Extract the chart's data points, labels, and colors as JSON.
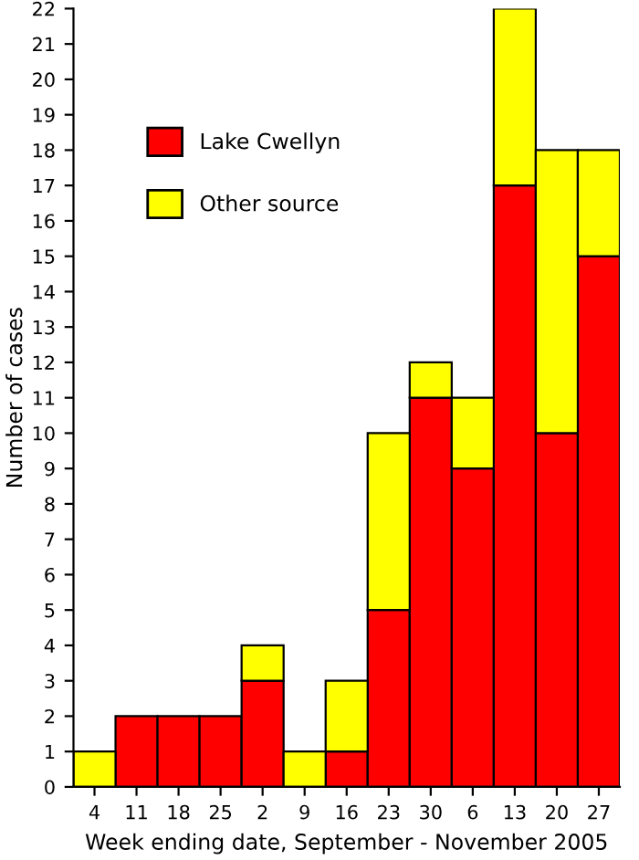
{
  "chart_data": {
    "type": "bar",
    "stacked": true,
    "xlabel": "Week ending date, September - November 2005",
    "ylabel": "Number of cases",
    "categories": [
      "4",
      "11",
      "18",
      "25",
      "2",
      "9",
      "16",
      "23",
      "30",
      "6",
      "13",
      "20",
      "27"
    ],
    "series": [
      {
        "name": "Lake Cwellyn",
        "color": "#ff0000",
        "values": [
          0,
          2,
          2,
          2,
          3,
          0,
          1,
          5,
          11,
          9,
          17,
          10,
          15
        ]
      },
      {
        "name": "Other source",
        "color": "#ffff00",
        "values": [
          1,
          0,
          0,
          0,
          1,
          1,
          2,
          5,
          1,
          2,
          5,
          8,
          3
        ]
      }
    ],
    "ylim": [
      0,
      22
    ],
    "yticks": [
      0,
      1,
      2,
      3,
      4,
      5,
      6,
      7,
      8,
      9,
      10,
      11,
      12,
      13,
      14,
      15,
      16,
      17,
      18,
      19,
      20,
      21,
      22
    ],
    "grid": false,
    "legend": "top left"
  }
}
